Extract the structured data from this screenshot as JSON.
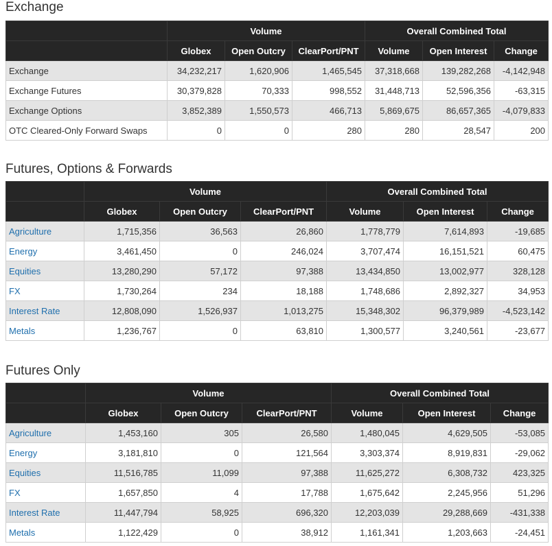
{
  "exchange": {
    "title": "Exchange",
    "group_headers": {
      "volume": "Volume",
      "overall": "Overall Combined Total"
    },
    "columns": [
      "Globex",
      "Open Outcry",
      "ClearPort/PNT",
      "Volume",
      "Open Interest",
      "Change"
    ],
    "rows": [
      {
        "name": "Exchange",
        "values": [
          "34,232,217",
          "1,620,906",
          "1,465,545",
          "37,318,668",
          "139,282,268",
          "-4,142,948"
        ]
      },
      {
        "name": "Exchange Futures",
        "values": [
          "30,379,828",
          "70,333",
          "998,552",
          "31,448,713",
          "52,596,356",
          "-63,315"
        ]
      },
      {
        "name": "Exchange Options",
        "values": [
          "3,852,389",
          "1,550,573",
          "466,713",
          "5,869,675",
          "86,657,365",
          "-4,079,833"
        ]
      },
      {
        "name": "OTC Cleared-Only Forward Swaps",
        "values": [
          "0",
          "0",
          "280",
          "280",
          "28,547",
          "200"
        ]
      }
    ]
  },
  "futures_options_forwards": {
    "title": "Futures, Options & Forwards",
    "group_headers": {
      "volume": "Volume",
      "overall": "Overall Combined Total"
    },
    "columns": [
      "Globex",
      "Open Outcry",
      "ClearPort/PNT",
      "Volume",
      "Open Interest",
      "Change"
    ],
    "rows": [
      {
        "name": "Agriculture",
        "values": [
          "1,715,356",
          "36,563",
          "26,860",
          "1,778,779",
          "7,614,893",
          "-19,685"
        ]
      },
      {
        "name": "Energy",
        "values": [
          "3,461,450",
          "0",
          "246,024",
          "3,707,474",
          "16,151,521",
          "60,475"
        ]
      },
      {
        "name": "Equities",
        "values": [
          "13,280,290",
          "57,172",
          "97,388",
          "13,434,850",
          "13,002,977",
          "328,128"
        ]
      },
      {
        "name": "FX",
        "values": [
          "1,730,264",
          "234",
          "18,188",
          "1,748,686",
          "2,892,327",
          "34,953"
        ]
      },
      {
        "name": "Interest Rate",
        "values": [
          "12,808,090",
          "1,526,937",
          "1,013,275",
          "15,348,302",
          "96,379,989",
          "-4,523,142"
        ]
      },
      {
        "name": "Metals",
        "values": [
          "1,236,767",
          "0",
          "63,810",
          "1,300,577",
          "3,240,561",
          "-23,677"
        ]
      }
    ]
  },
  "futures_only": {
    "title": "Futures Only",
    "group_headers": {
      "volume": "Volume",
      "overall": "Overall Combined Total"
    },
    "columns": [
      "Globex",
      "Open Outcry",
      "ClearPort/PNT",
      "Volume",
      "Open Interest",
      "Change"
    ],
    "rows": [
      {
        "name": "Agriculture",
        "values": [
          "1,453,160",
          "305",
          "26,580",
          "1,480,045",
          "4,629,505",
          "-53,085"
        ]
      },
      {
        "name": "Energy",
        "values": [
          "3,181,810",
          "0",
          "121,564",
          "3,303,374",
          "8,919,831",
          "-29,062"
        ]
      },
      {
        "name": "Equities",
        "values": [
          "11,516,785",
          "11,099",
          "97,388",
          "11,625,272",
          "6,308,732",
          "423,325"
        ]
      },
      {
        "name": "FX",
        "values": [
          "1,657,850",
          "4",
          "17,788",
          "1,675,642",
          "2,245,956",
          "51,296"
        ]
      },
      {
        "name": "Interest Rate",
        "values": [
          "11,447,794",
          "58,925",
          "696,320",
          "12,203,039",
          "29,288,669",
          "-431,338"
        ]
      },
      {
        "name": "Metals",
        "values": [
          "1,122,429",
          "0",
          "38,912",
          "1,161,341",
          "1,203,663",
          "-24,451"
        ]
      }
    ]
  },
  "colors": {
    "header_bg": "#262626",
    "row_shade": "#e4e4e4",
    "link": "#1f6fad"
  }
}
